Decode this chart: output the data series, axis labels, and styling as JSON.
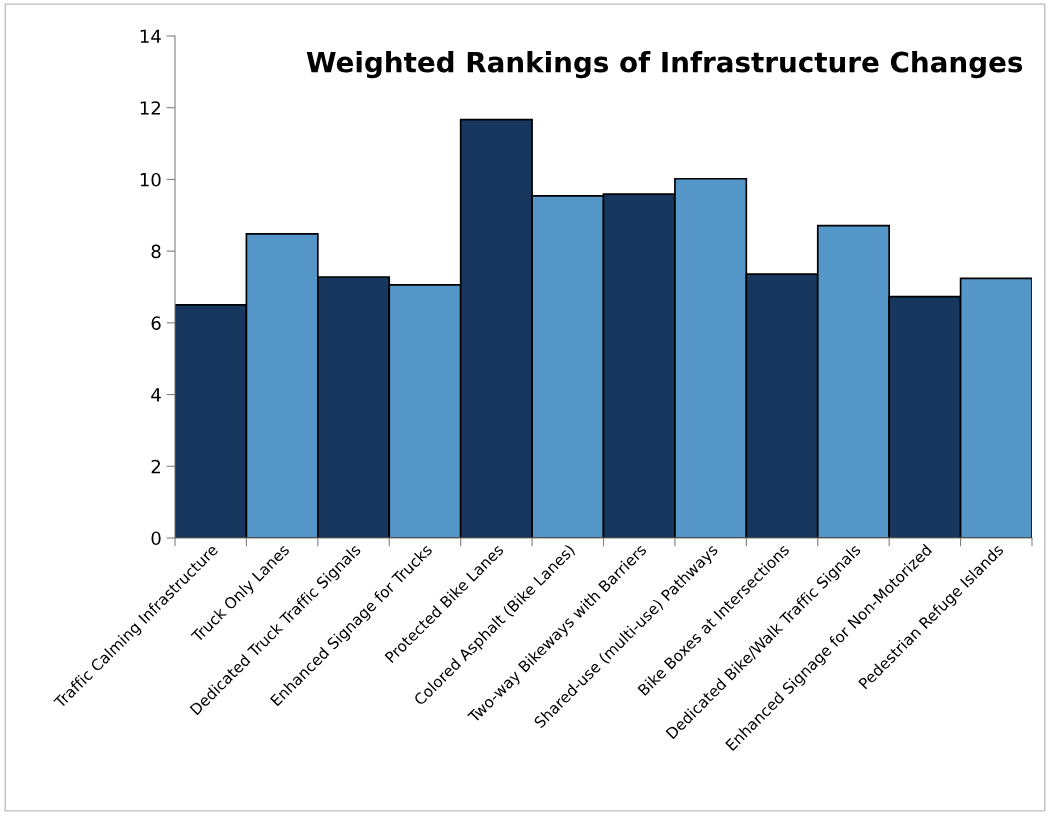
{
  "chart_data": {
    "type": "bar",
    "title": "Weighted Rankings of Infrastructure Changes",
    "categories": [
      "Traffic Calming Infrastructure",
      "Truck Only Lanes",
      "Dedicated Truck Traffic Signals",
      "Enhanced Signage for Trucks",
      "Protected Bike Lanes",
      "Colored Asphalt (Bike Lanes)",
      "Two-way Bikeways with Barriers",
      "Shared-use (multi-use) Pathways",
      "Bike Boxes at Intersections",
      "Dedicated Bike/Walk Traffic Signals",
      "Enhanced Signage for Non-Motorized",
      "Pedestrian Refuge Islands"
    ],
    "values": [
      6.5,
      8.48,
      7.28,
      7.06,
      11.67,
      9.54,
      9.59,
      10.02,
      7.36,
      8.71,
      6.73,
      7.24
    ],
    "colors": [
      "#17375e",
      "#5596c8",
      "#17375e",
      "#5596c8",
      "#17375e",
      "#5596c8",
      "#17375e",
      "#5596c8",
      "#17375e",
      "#5596c8",
      "#17375e",
      "#5596c8"
    ],
    "ylim": [
      0,
      14
    ],
    "yticks": [
      0,
      2,
      4,
      6,
      8,
      10,
      12,
      14
    ],
    "grid": false,
    "legend": false
  }
}
